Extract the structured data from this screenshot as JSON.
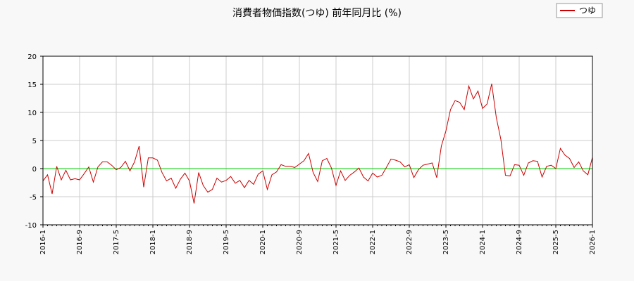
{
  "chart_data": {
    "type": "line",
    "title": "消費者物価指数(つゆ) 前年同月比 (%)",
    "xlabel": "",
    "ylabel": "",
    "ylim": [
      -10,
      20
    ],
    "yticks": [
      -10,
      -5,
      0,
      5,
      10,
      15,
      20
    ],
    "xlim": [
      "2016-1",
      "2026-1"
    ],
    "xticks": [
      "2016-1",
      "2016-9",
      "2017-5",
      "2018-1",
      "2018-9",
      "2019-5",
      "2020-1",
      "2020-9",
      "2021-5",
      "2022-1",
      "2022-9",
      "2023-5",
      "2024-1",
      "2024-9",
      "2025-5",
      "2026-1"
    ],
    "grid": true,
    "legend_position": "top-right",
    "reference_line": {
      "y": 0,
      "color": "#00cc00"
    },
    "series": [
      {
        "name": "つゆ",
        "color": "#cc0000",
        "start": "2016-1",
        "values": [
          -2.2,
          -1.1,
          -4.5,
          0.4,
          -2.0,
          -0.3,
          -2.0,
          -1.8,
          -2.0,
          -0.9,
          0.3,
          -2.4,
          0.3,
          1.2,
          1.2,
          0.6,
          -0.2,
          0.2,
          1.3,
          -0.4,
          1.2,
          4.0,
          -3.3,
          1.9,
          1.9,
          1.5,
          -0.7,
          -2.2,
          -1.7,
          -3.5,
          -1.9,
          -0.8,
          -2.2,
          -6.2,
          -0.7,
          -3.0,
          -4.2,
          -3.7,
          -1.7,
          -2.4,
          -2.1,
          -1.4,
          -2.6,
          -2.1,
          -3.4,
          -2.1,
          -2.8,
          -1.0,
          -0.4,
          -3.7,
          -1.1,
          -0.6,
          0.7,
          0.4,
          0.4,
          0.2,
          0.8,
          1.4,
          2.7,
          -0.7,
          -2.3,
          1.4,
          1.8,
          0.1,
          -3.0,
          -0.4,
          -2.1,
          -1.2,
          -0.6,
          0.1,
          -1.5,
          -2.2,
          -0.8,
          -1.5,
          -1.2,
          0.2,
          1.7,
          1.5,
          1.2,
          0.3,
          0.7,
          -1.6,
          -0.2,
          0.6,
          0.8,
          1.0,
          -1.6,
          4.0,
          6.7,
          10.5,
          12.1,
          11.8,
          10.5,
          14.7,
          12.4,
          13.8,
          10.7,
          11.5,
          15.1,
          9.1,
          5.2,
          -1.2,
          -1.3,
          0.7,
          0.6,
          -1.2,
          1.0,
          1.4,
          1.3,
          -1.5,
          0.4,
          0.6,
          0.0,
          3.6,
          2.4,
          1.8,
          0.2,
          1.2,
          -0.4,
          -1.1,
          2.0
        ]
      }
    ]
  }
}
